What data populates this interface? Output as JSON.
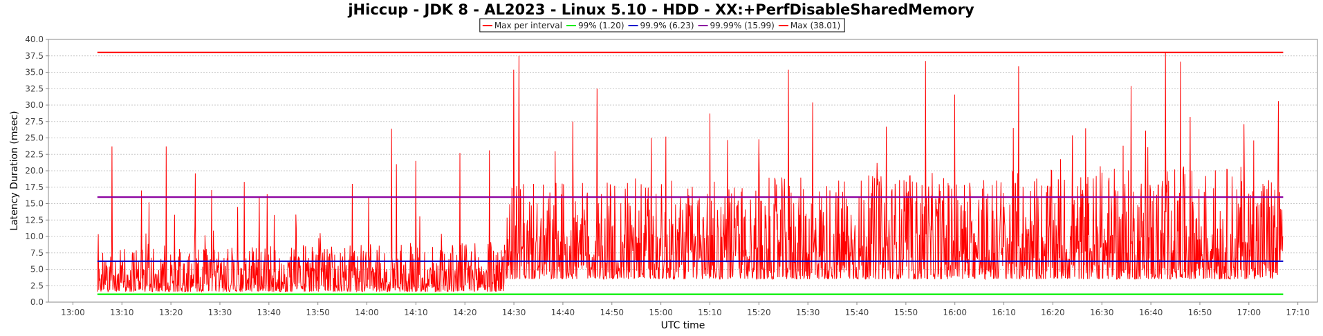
{
  "chart_data": {
    "type": "line",
    "title": "jHiccup - JDK 8 - AL2023 - Linux 5.10 - HDD - XX:+PerfDisableSharedMemory",
    "xlabel": "UTC time",
    "ylabel": "Latency Duration (msec)",
    "ylim": [
      0,
      40
    ],
    "xlim": [
      "12:55",
      "17:14"
    ],
    "y_ticks": [
      "0.0",
      "2.5",
      "5.0",
      "7.5",
      "10.0",
      "12.5",
      "15.0",
      "17.5",
      "20.0",
      "22.5",
      "25.0",
      "27.5",
      "30.0",
      "32.5",
      "35.0",
      "37.5",
      "40.0"
    ],
    "x_ticks": [
      "13:00",
      "13:10",
      "13:20",
      "13:30",
      "13:40",
      "13:50",
      "14:00",
      "14:10",
      "14:20",
      "14:30",
      "14:40",
      "14:50",
      "15:00",
      "15:10",
      "15:20",
      "15:30",
      "15:40",
      "15:50",
      "16:00",
      "16:10",
      "16:20",
      "16:30",
      "16:40",
      "16:50",
      "17:00",
      "17:10"
    ],
    "grid": true,
    "legend_position": "top-center",
    "series": [
      {
        "name": "Max per interval",
        "color": "#ff0000",
        "x_range": [
          "13:05",
          "17:07"
        ],
        "peaks": [
          {
            "x": "13:08",
            "y": 23.7
          },
          {
            "x": "13:14",
            "y": 17.0
          },
          {
            "x": "13:19",
            "y": 23.7
          },
          {
            "x": "13:25",
            "y": 19.6
          },
          {
            "x": "13:35",
            "y": 18.3
          },
          {
            "x": "13:38",
            "y": 16.0
          },
          {
            "x": "13:57",
            "y": 18.0
          },
          {
            "x": "14:05",
            "y": 26.4
          },
          {
            "x": "14:06",
            "y": 21.0
          },
          {
            "x": "14:10",
            "y": 21.5
          },
          {
            "x": "14:19",
            "y": 22.7
          },
          {
            "x": "14:25",
            "y": 23.1
          },
          {
            "x": "14:30",
            "y": 35.4
          },
          {
            "x": "14:31",
            "y": 37.5
          },
          {
            "x": "14:42",
            "y": 27.5
          },
          {
            "x": "14:47",
            "y": 32.5
          },
          {
            "x": "14:58",
            "y": 25.0
          },
          {
            "x": "15:01",
            "y": 25.2
          },
          {
            "x": "15:10",
            "y": 28.7
          },
          {
            "x": "15:20",
            "y": 24.8
          },
          {
            "x": "15:26",
            "y": 35.4
          },
          {
            "x": "15:31",
            "y": 30.4
          },
          {
            "x": "15:46",
            "y": 26.7
          },
          {
            "x": "15:54",
            "y": 36.7
          },
          {
            "x": "16:00",
            "y": 31.6
          },
          {
            "x": "16:13",
            "y": 35.9
          },
          {
            "x": "16:24",
            "y": 25.4
          },
          {
            "x": "16:36",
            "y": 32.9
          },
          {
            "x": "16:43",
            "y": 38.0
          },
          {
            "x": "16:46",
            "y": 36.6
          },
          {
            "x": "16:48",
            "y": 28.2
          },
          {
            "x": "16:59",
            "y": 27.1
          },
          {
            "x": "17:01",
            "y": 24.6
          },
          {
            "x": "17:06",
            "y": 30.6
          }
        ]
      },
      {
        "name": "99% (1.20)",
        "color": "#00ee00",
        "x_range": [
          "13:05",
          "17:07"
        ],
        "value": 1.2
      },
      {
        "name": "99.9% (6.23)",
        "color": "#0000cc",
        "x_range": [
          "13:05",
          "17:07"
        ],
        "value": 6.23
      },
      {
        "name": "99.99% (15.99)",
        "color": "#8b00a0",
        "x_range": [
          "13:05",
          "17:07"
        ],
        "value": 15.99
      },
      {
        "name": "Max (38.01)",
        "color": "#ff0000",
        "x_range": [
          "13:05",
          "17:07"
        ],
        "value": 38.01
      }
    ]
  }
}
